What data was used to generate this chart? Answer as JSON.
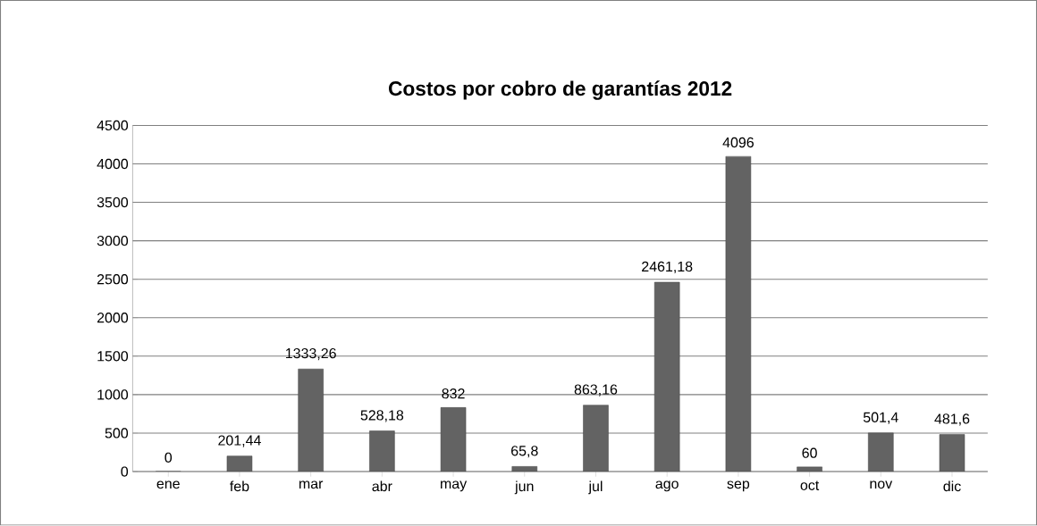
{
  "chart_data": {
    "type": "bar",
    "title": "Costos por cobro de garantías 2012",
    "categories": [
      "ene",
      "feb",
      "mar",
      "abr",
      "may",
      "jun",
      "jul",
      "ago",
      "sep",
      "oct",
      "nov",
      "dic"
    ],
    "values": [
      0,
      201.44,
      1333.26,
      528.18,
      832,
      65.8,
      863.16,
      2461.18,
      4096,
      60,
      501.4,
      481.6
    ],
    "value_labels": [
      "0",
      "201,44",
      "1333,26",
      "528,18",
      "832",
      "65,8",
      "863,16",
      "2461,18",
      "4096",
      "60",
      "501,4",
      "481,6"
    ],
    "color": "#636363",
    "ylim": [
      0,
      4500
    ],
    "yticks": [
      0,
      500,
      1000,
      1500,
      2000,
      2500,
      3000,
      3500,
      4000,
      4500
    ],
    "grid": "y"
  }
}
